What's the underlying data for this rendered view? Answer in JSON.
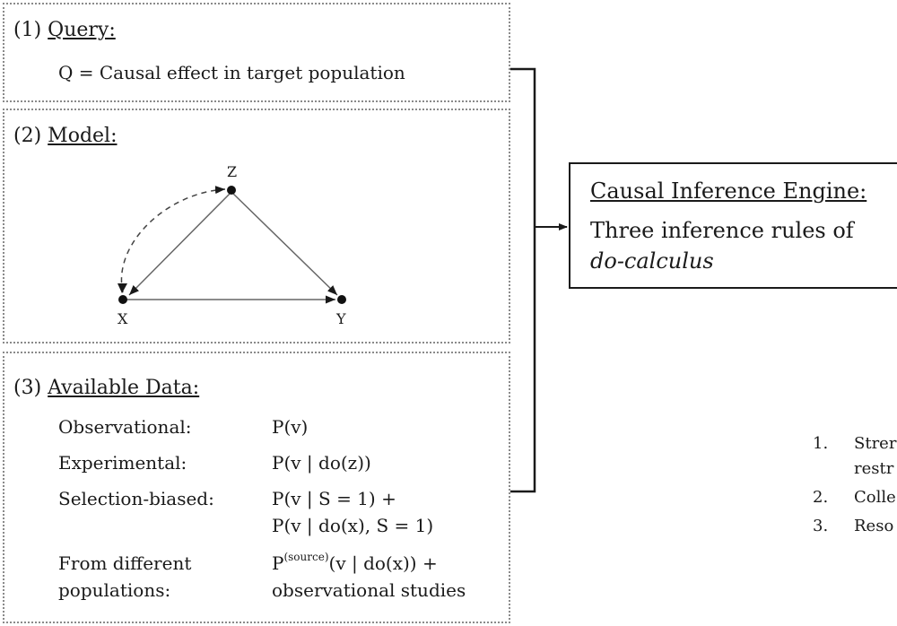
{
  "query": {
    "title_num": "(1)",
    "title": "Query:",
    "text": "Q = Causal effect in target population"
  },
  "model": {
    "title_num": "(2)",
    "title": "Model:",
    "nodes": {
      "z": "Z",
      "x": "X",
      "y": "Y"
    }
  },
  "data": {
    "title_num": "(3)",
    "title": "Available Data:",
    "rows": [
      {
        "label": "Observational:",
        "value": "P(v)"
      },
      {
        "label": "Experimental:",
        "value": "P(v | do(z))"
      },
      {
        "label": "Selection-biased:",
        "value": "P(v | S = 1) +",
        "value2": "P(v | do(x), S = 1)"
      },
      {
        "label": "From different",
        "label2": "populations:",
        "value_pre": "P",
        "value_sup": "(source)",
        "value_post": "(v | do(x)) +",
        "value2": "observational studies"
      }
    ]
  },
  "engine": {
    "title": "Causal Inference Engine:",
    "line1": "Three inference rules of",
    "line2": "do-calculus"
  },
  "side_list": [
    {
      "num": "1.",
      "text": "Strer",
      "text2": "restr"
    },
    {
      "num": "2.",
      "text": "Colle"
    },
    {
      "num": "3.",
      "text": "Reso"
    }
  ],
  "colors": {
    "border_dotted": "#8a8a8a",
    "ink": "#1a1a1a"
  }
}
